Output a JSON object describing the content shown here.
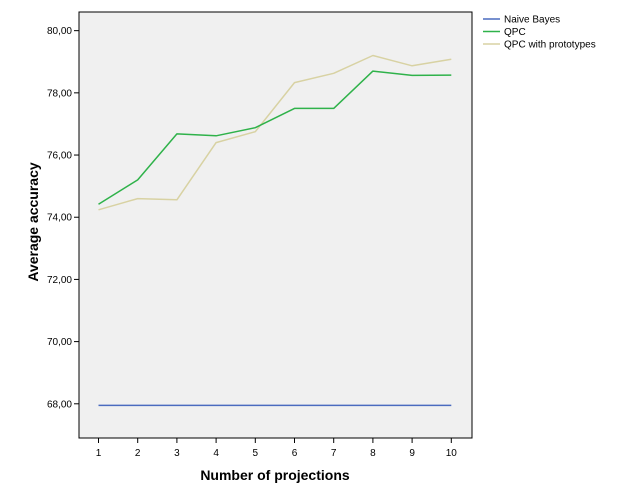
{
  "chart_data": {
    "type": "line",
    "xlabel": "Number of projections",
    "ylabel": "Average accuracy",
    "x": [
      1,
      2,
      3,
      4,
      5,
      6,
      7,
      8,
      9,
      10
    ],
    "x_tick_labels": [
      "1",
      "2",
      "3",
      "4",
      "5",
      "6",
      "7",
      "8",
      "9",
      "10"
    ],
    "ylim": [
      66.9,
      80.6
    ],
    "y_ticks": [
      68,
      70,
      72,
      74,
      76,
      78,
      80
    ],
    "y_tick_labels": [
      "68,00",
      "70,00",
      "72,00",
      "74,00",
      "76,00",
      "78,00",
      "80,00"
    ],
    "grid": false,
    "legend_position": "top-right, outside plot",
    "plot_background": "#f0f0f0",
    "series": [
      {
        "name": "Naive Bayes",
        "color": "#4a6bbf",
        "values": [
          67.95,
          67.95,
          67.95,
          67.95,
          67.95,
          67.95,
          67.95,
          67.95,
          67.95,
          67.95
        ]
      },
      {
        "name": "QPC",
        "color": "#2fb24a",
        "values": [
          74.42,
          75.2,
          76.68,
          76.62,
          76.88,
          77.5,
          77.5,
          78.7,
          78.56,
          78.57
        ]
      },
      {
        "name": "QPC with prototypes",
        "color": "#d8d2a3",
        "values": [
          74.24,
          74.6,
          74.56,
          76.4,
          76.75,
          78.33,
          78.63,
          79.2,
          78.87,
          79.08
        ]
      }
    ]
  }
}
